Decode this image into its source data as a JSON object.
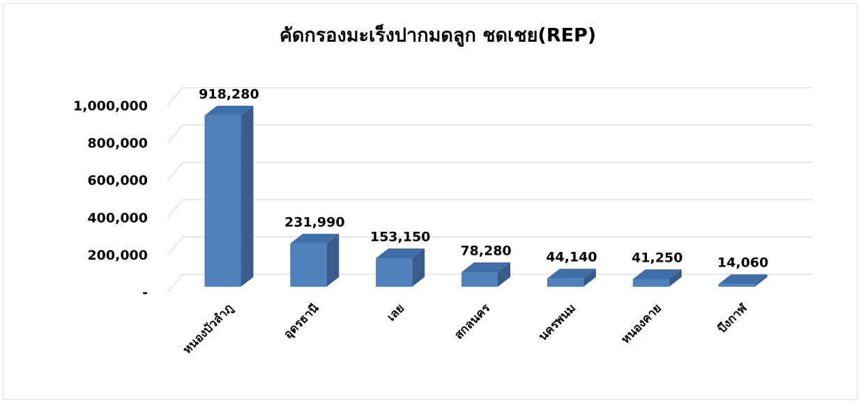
{
  "chart_data": {
    "type": "bar3d",
    "title": "คัดกรองมะเร็งปากมดลูก ชดเชย(REP)",
    "categories": [
      "หนองบัวลำภู",
      "อุดรธานี",
      "เลย",
      "สกลนคร",
      "นครพนม",
      "หนองคาย",
      "บึงกาฬ"
    ],
    "values": [
      918280,
      231990,
      153150,
      78280,
      44140,
      41250,
      14060
    ],
    "value_labels": [
      "918,280",
      "231,990",
      "153,150",
      "78,280",
      "44,140",
      "41,250",
      "14,060"
    ],
    "color": "#4f81bd",
    "ylim": [
      0,
      1000000
    ],
    "yticks": [
      {
        "value": 0,
        "label": "-"
      },
      {
        "value": 200000,
        "label": "200,000"
      },
      {
        "value": 400000,
        "label": "400,000"
      },
      {
        "value": 600000,
        "label": "600,000"
      },
      {
        "value": 800000,
        "label": "800,000"
      },
      {
        "value": 1000000,
        "label": "1,000,000"
      }
    ],
    "grid": true
  }
}
